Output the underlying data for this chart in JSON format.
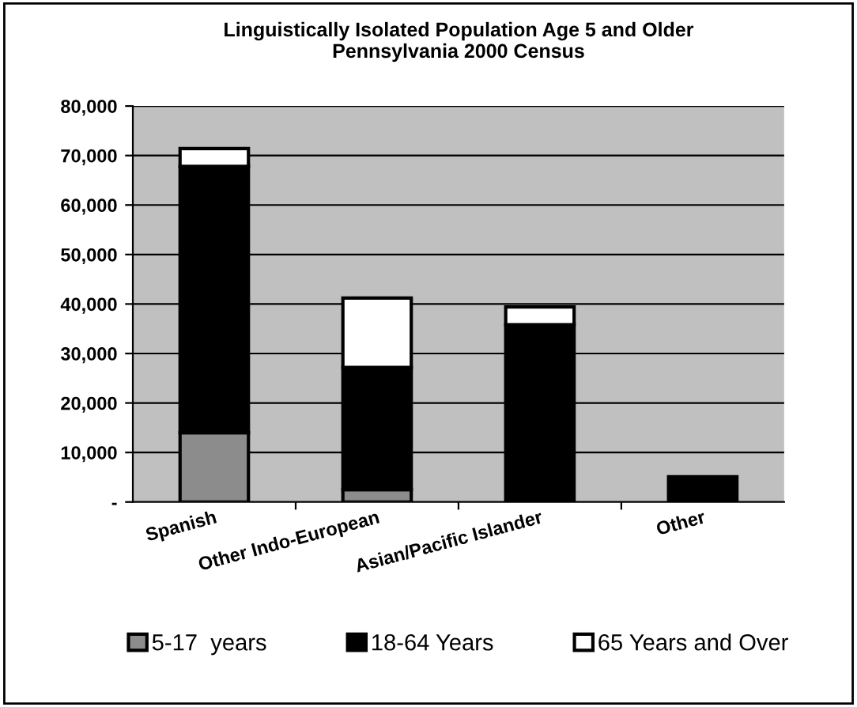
{
  "chart_data": {
    "type": "bar",
    "title": "Linguistically Isolated Population Age 5 and Older\nPennsylvania 2000 Census",
    "categories": [
      "Spanish",
      "Other Indo-European",
      "Asian/Pacific Islander",
      "Other"
    ],
    "stacked": true,
    "series": [
      {
        "name": "5-17  years",
        "color": "#8c8c8c",
        "values": [
          14000,
          2500,
          0,
          0
        ]
      },
      {
        "name": "18-64 Years",
        "color": "#000000",
        "values": [
          53800,
          24700,
          35800,
          5100
        ]
      },
      {
        "name": "65 Years and Over",
        "color": "#ffffff",
        "values": [
          3600,
          14000,
          3600,
          0
        ]
      }
    ],
    "ylim": [
      0,
      80000
    ],
    "yticks": [
      {
        "value": 0,
        "label": "-"
      },
      {
        "value": 10000,
        "label": "10,000"
      },
      {
        "value": 20000,
        "label": "20,000"
      },
      {
        "value": 30000,
        "label": "30,000"
      },
      {
        "value": 40000,
        "label": "40,000"
      },
      {
        "value": 50000,
        "label": "50,000"
      },
      {
        "value": 60000,
        "label": "60,000"
      },
      {
        "value": 70000,
        "label": "70,000"
      },
      {
        "value": 80000,
        "label": "80,000"
      }
    ],
    "grid": "y",
    "legend": "bottom"
  }
}
